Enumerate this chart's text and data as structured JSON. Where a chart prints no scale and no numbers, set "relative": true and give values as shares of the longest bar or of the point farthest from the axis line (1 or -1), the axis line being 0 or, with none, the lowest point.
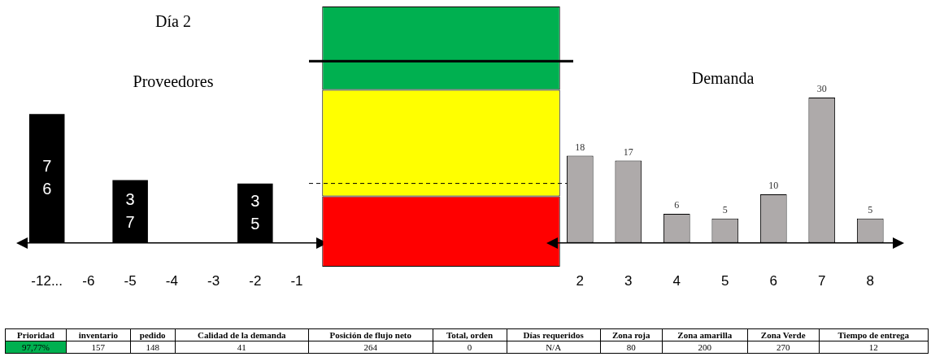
{
  "chart_data": [
    {
      "type": "bar",
      "title": "Día 2",
      "subtitle": "Proveedores",
      "categories": [
        "-12...",
        "-6",
        "-5",
        "-4",
        "-3",
        "-2",
        "-1"
      ],
      "values": [
        76,
        null,
        37,
        null,
        null,
        35,
        null
      ],
      "color": "#000000",
      "data_labels": true,
      "tick_labels": "x"
    },
    {
      "type": "bar",
      "stacked": true,
      "relative": true,
      "categories": [
        null
      ],
      "series": [
        {
          "color": "#ff0000",
          "values": [
            0.27
          ]
        },
        {
          "color": "#ffff00",
          "values": [
            0.41
          ]
        },
        {
          "color": "#00b050",
          "values": [
            0.32
          ]
        }
      ],
      "ref_lines": [
        {
          "axis": "y",
          "value": 0.79,
          "line_style": "solid",
          "color": "#000000"
        },
        {
          "axis": "y",
          "value": 0.32,
          "line_style": "dashed",
          "color": "#000000"
        }
      ],
      "tick_labels": false
    },
    {
      "type": "bar",
      "title": "Demanda",
      "categories": [
        "2",
        "3",
        "4",
        "5",
        "6",
        "7",
        "8"
      ],
      "values": [
        18,
        17,
        6,
        5,
        10,
        30,
        5
      ],
      "color": "#aeaaaa",
      "data_labels": true,
      "tick_labels": "x"
    },
    {
      "type": "other",
      "annotations": [
        "Prioridad",
        "inventario",
        "pedido",
        "Calidad de la demanda",
        "Posición de flujo neto",
        "Total, orden",
        "Días requeridos",
        "Zona roja",
        "Zona amarilla",
        "Zona Verde",
        "Tiempo de entrega",
        "97,77%",
        "157",
        "148",
        "41",
        "264",
        "0",
        "N/A",
        "80",
        "200",
        "270",
        "12"
      ],
      "colors": [
        "#00b050",
        "#ffffff",
        "#ffffff",
        "#ffffff",
        "#ffffff",
        "#ffffff",
        "#ffffff",
        "#ffffff",
        "#ffffff",
        "#ffffff",
        "#ffffff"
      ]
    }
  ]
}
